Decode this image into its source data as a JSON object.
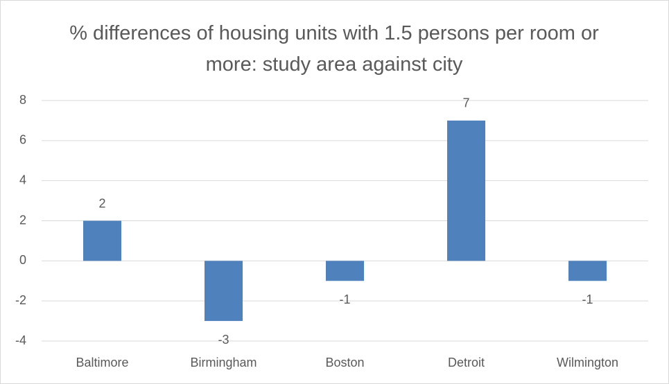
{
  "chart_data": {
    "type": "bar",
    "title": "% differences of housing units with 1.5 persons per room or more: study area against city",
    "categories": [
      "Baltimore",
      "Birmingham",
      "Boston",
      "Detroit",
      "Wilmington"
    ],
    "values": [
      2,
      -3,
      -1,
      7,
      -1
    ],
    "color": "#4f81bd",
    "ylim": [
      -4,
      8
    ],
    "yticks": [
      -4,
      -2,
      0,
      2,
      4,
      6,
      8
    ],
    "grid": true
  }
}
